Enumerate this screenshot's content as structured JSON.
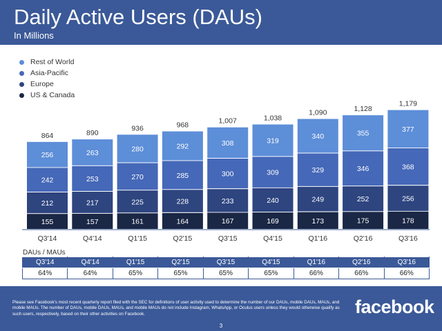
{
  "header": {
    "title": "Daily Active Users (DAUs)",
    "subtitle": "In Millions"
  },
  "colors": {
    "header_bg": "#3b5998",
    "us_canada": "#1a2745",
    "europe": "#2e4580",
    "asia_pacific": "#4568b8",
    "rest_of_world": "#5d8ed8"
  },
  "chart_data": {
    "type": "bar",
    "stacked": true,
    "categories": [
      "Q3'14",
      "Q4'14",
      "Q1'15",
      "Q2'15",
      "Q3'15",
      "Q4'15",
      "Q1'16",
      "Q2'16",
      "Q3'16"
    ],
    "series": [
      {
        "name": "US & Canada",
        "color": "#1a2745",
        "values": [
          155,
          157,
          161,
          164,
          167,
          169,
          173,
          175,
          178
        ]
      },
      {
        "name": "Europe",
        "color": "#2e4580",
        "values": [
          212,
          217,
          225,
          228,
          233,
          240,
          249,
          252,
          256
        ]
      },
      {
        "name": "Asia-Pacific",
        "color": "#4568b8",
        "values": [
          242,
          253,
          270,
          285,
          300,
          309,
          329,
          346,
          368
        ]
      },
      {
        "name": "Rest of World",
        "color": "#5d8ed8",
        "values": [
          256,
          263,
          280,
          292,
          308,
          319,
          340,
          355,
          377
        ]
      }
    ],
    "totals": [
      "864",
      "890",
      "936",
      "968",
      "1,007",
      "1,038",
      "1,090",
      "1,128",
      "1,179"
    ],
    "legend_order": [
      "Rest of World",
      "Asia-Pacific",
      "Europe",
      "US & Canada"
    ],
    "legend_position": "top-left",
    "grid": false
  },
  "dau_mau": {
    "label": "DAUs / MAUs",
    "quarters": [
      "Q3'14",
      "Q4'14",
      "Q1'15",
      "Q2'15",
      "Q3'15",
      "Q4'15",
      "Q1'16",
      "Q2'16",
      "Q3'16"
    ],
    "values": [
      "64%",
      "64%",
      "65%",
      "65%",
      "65%",
      "65%",
      "66%",
      "66%",
      "66%"
    ]
  },
  "footer": {
    "note": "Please see Facebook's most recent quarterly report filed with the SEC for definitions of user activity used to determine the number of our DAUs, mobile DAUs, MAUs, and mobile MAUs. The number of DAUs, mobile DAUs, MAUs, and mobile MAUs do not include Instagram, WhatsApp, or Oculus users unless they would otherwise qualify as such users, respectively, based on their other activities on Facebook.",
    "logo": "facebook",
    "page_number": "3"
  }
}
